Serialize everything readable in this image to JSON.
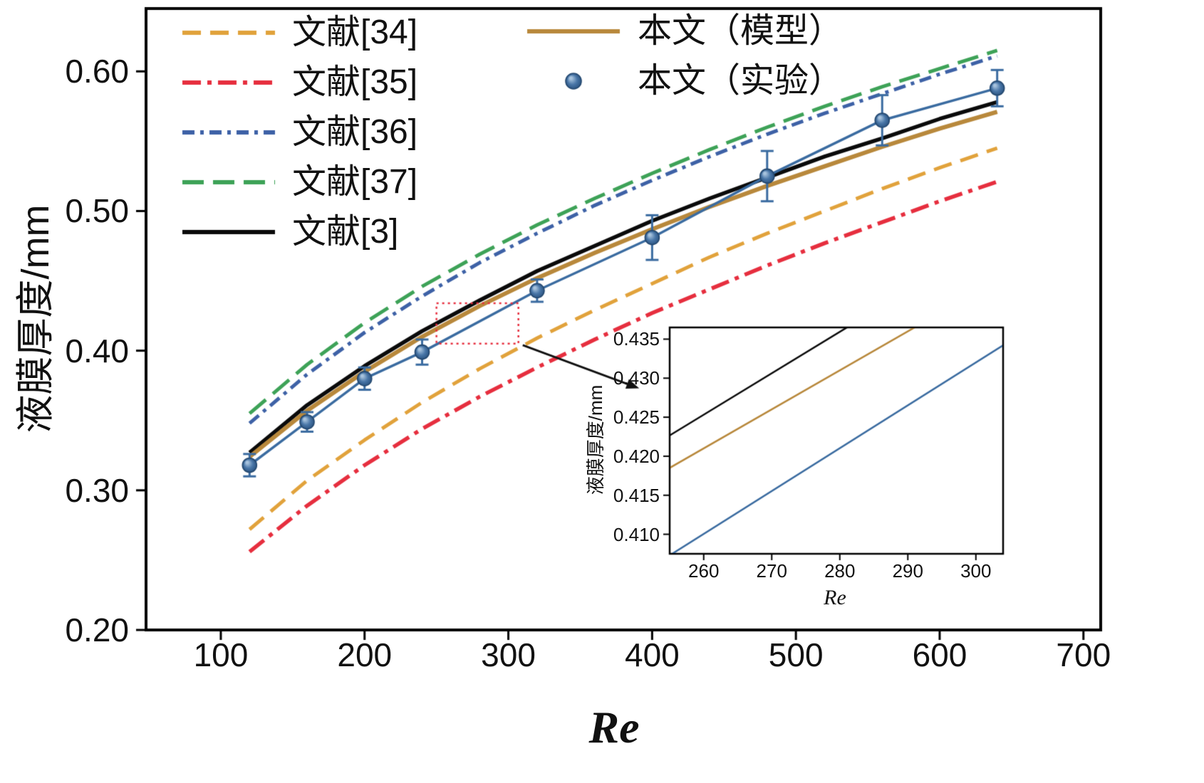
{
  "chart_data": {
    "type": "line",
    "title": "",
    "main": {
      "xlabel": "Re",
      "ylabel": "液膜厚度/mm",
      "xlim": [
        48,
        712
      ],
      "ylim": [
        0.2,
        0.645
      ],
      "xticks": [
        "100",
        "200",
        "300",
        "400",
        "500",
        "600",
        "700"
      ],
      "yticks": [
        "0.20",
        "0.30",
        "0.40",
        "0.50",
        "0.60"
      ],
      "grid": false,
      "series": [
        {
          "name": "文献[37]",
          "color": "#3DA257",
          "style": "dashed-long",
          "linewidth": 5,
          "x": [
            120,
            160,
            200,
            240,
            280,
            320,
            360,
            400,
            440,
            480,
            520,
            560,
            600,
            640
          ],
          "y": [
            0.355,
            0.39,
            0.42,
            0.446,
            0.469,
            0.49,
            0.509,
            0.527,
            0.544,
            0.56,
            0.575,
            0.589,
            0.602,
            0.615
          ]
        },
        {
          "name": "文献[36]",
          "color": "#3D61A6",
          "style": "dashdot2",
          "linewidth": 5,
          "x": [
            120,
            160,
            200,
            240,
            280,
            320,
            360,
            400,
            440,
            480,
            520,
            560,
            600,
            640
          ],
          "y": [
            0.348,
            0.383,
            0.413,
            0.439,
            0.463,
            0.484,
            0.504,
            0.522,
            0.539,
            0.555,
            0.57,
            0.584,
            0.598,
            0.611
          ]
        },
        {
          "name": "文献[34]",
          "color": "#E1A23B",
          "style": "dashed",
          "linewidth": 5,
          "x": [
            120,
            160,
            200,
            240,
            280,
            320,
            360,
            400,
            440,
            480,
            520,
            560,
            600,
            640
          ],
          "y": [
            0.272,
            0.307,
            0.336,
            0.363,
            0.387,
            0.409,
            0.429,
            0.448,
            0.467,
            0.484,
            0.5,
            0.516,
            0.531,
            0.545
          ]
        },
        {
          "name": "文献[35]",
          "color": "#E62E3E",
          "style": "dashdot",
          "linewidth": 5.5,
          "x": [
            120,
            160,
            200,
            240,
            280,
            320,
            360,
            400,
            440,
            480,
            520,
            560,
            600,
            640
          ],
          "y": [
            0.256,
            0.289,
            0.318,
            0.344,
            0.367,
            0.388,
            0.408,
            0.427,
            0.444,
            0.461,
            0.477,
            0.492,
            0.507,
            0.521
          ]
        },
        {
          "name": "文献[3]",
          "color": "#0a0a0a",
          "style": "solid",
          "linewidth": 5.5,
          "x": [
            120,
            160,
            200,
            240,
            280,
            320,
            360,
            400,
            440,
            480,
            520,
            560,
            600,
            640
          ],
          "y": [
            0.327,
            0.361,
            0.389,
            0.414,
            0.436,
            0.457,
            0.475,
            0.493,
            0.509,
            0.524,
            0.539,
            0.552,
            0.566,
            0.578
          ]
        },
        {
          "name": "本文（模型）",
          "color": "#B8883B",
          "style": "solid",
          "linewidth": 6,
          "x": [
            120,
            160,
            200,
            240,
            280,
            320,
            360,
            400,
            440,
            480,
            520,
            560,
            600,
            640
          ],
          "y": [
            0.324,
            0.357,
            0.385,
            0.41,
            0.432,
            0.452,
            0.47,
            0.487,
            0.503,
            0.518,
            0.532,
            0.546,
            0.559,
            0.571
          ]
        },
        {
          "name": "本文（实验）",
          "color": "#3A6BA0",
          "style": "solid",
          "linewidth": 3.5,
          "marker": "sphere",
          "x": [
            120,
            160,
            200,
            240,
            320,
            400,
            480,
            560,
            640
          ],
          "y": [
            0.318,
            0.349,
            0.38,
            0.399,
            0.443,
            0.481,
            0.525,
            0.565,
            0.588
          ],
          "yerr": [
            0.008,
            0.007,
            0.008,
            0.009,
            0.008,
            0.016,
            0.018,
            0.018,
            0.013
          ]
        }
      ]
    },
    "inset": {
      "xlabel": "Re",
      "ylabel": "液膜厚度/mm",
      "xlim": [
        255,
        304
      ],
      "ylim": [
        0.4075,
        0.4365
      ],
      "xticks": [
        "260",
        "270",
        "280",
        "290",
        "300"
      ],
      "yticks": [
        "0.410",
        "0.415",
        "0.420",
        "0.425",
        "0.430",
        "0.435"
      ],
      "series": [
        {
          "name": "文献[3]",
          "color": "#0a0a0a",
          "linewidth": 2.5,
          "x": [
            253,
            282
          ],
          "y": [
            0.4216,
            0.437
          ]
        },
        {
          "name": "本文（模型）",
          "color": "#B8883B",
          "linewidth": 2.5,
          "x": [
            253,
            292
          ],
          "y": [
            0.4175,
            0.437
          ]
        },
        {
          "name": "本文（实验）",
          "color": "#3A6BA0",
          "linewidth": 2.5,
          "x": [
            255,
            304
          ],
          "y": [
            0.4073,
            0.4342
          ]
        }
      ]
    },
    "legend": {
      "left": [
        {
          "label": "文献[34]",
          "color": "#E1A23B",
          "style": "dashed"
        },
        {
          "label": "文献[35]",
          "color": "#E62E3E",
          "style": "dashdot"
        },
        {
          "label": "文献[36]",
          "color": "#3D61A6",
          "style": "dashdot2"
        },
        {
          "label": "文献[37]",
          "color": "#3DA257",
          "style": "dashed-long"
        },
        {
          "label": "文献[3]",
          "color": "#0a0a0a",
          "style": "solid"
        }
      ],
      "right": [
        {
          "label": "本文（模型）",
          "color": "#B8883B",
          "style": "solid"
        },
        {
          "label": "本文（实验）",
          "color": "#3A6BA0",
          "style": "marker"
        }
      ]
    },
    "annotation": {
      "zoom_box": {
        "x": [
          250,
          307
        ],
        "y": [
          0.405,
          0.434
        ],
        "color": "#E62E3E"
      },
      "arrow": {
        "from": [
          310,
          0.404
        ],
        "to": [
          391,
          0.373
        ],
        "color": "#111111"
      }
    }
  }
}
